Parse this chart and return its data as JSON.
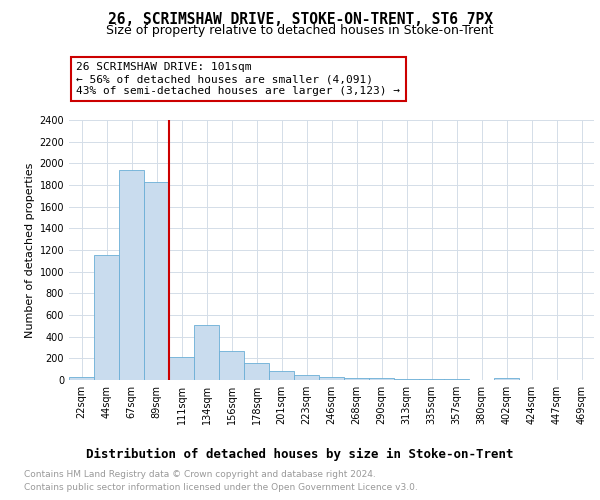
{
  "title": "26, SCRIMSHAW DRIVE, STOKE-ON-TRENT, ST6 7PX",
  "subtitle": "Size of property relative to detached houses in Stoke-on-Trent",
  "xlabel": "Distribution of detached houses by size in Stoke-on-Trent",
  "ylabel": "Number of detached properties",
  "categories": [
    "22sqm",
    "44sqm",
    "67sqm",
    "89sqm",
    "111sqm",
    "134sqm",
    "156sqm",
    "178sqm",
    "201sqm",
    "223sqm",
    "246sqm",
    "268sqm",
    "290sqm",
    "313sqm",
    "335sqm",
    "357sqm",
    "380sqm",
    "402sqm",
    "424sqm",
    "447sqm",
    "469sqm"
  ],
  "values": [
    25,
    1150,
    1940,
    1830,
    210,
    510,
    270,
    155,
    80,
    45,
    30,
    20,
    15,
    10,
    5,
    5,
    3,
    15,
    3,
    3,
    3
  ],
  "bar_color": "#c9dcee",
  "bar_edge_color": "#6aaed6",
  "vline_x_index": 3,
  "vline_color": "#cc0000",
  "annotation_text": "26 SCRIMSHAW DRIVE: 101sqm\n← 56% of detached houses are smaller (4,091)\n43% of semi-detached houses are larger (3,123) →",
  "annotation_box_color": "#cc0000",
  "ylim": [
    0,
    2400
  ],
  "yticks": [
    0,
    200,
    400,
    600,
    800,
    1000,
    1200,
    1400,
    1600,
    1800,
    2000,
    2200,
    2400
  ],
  "grid_color": "#d4dde8",
  "footer_line1": "Contains HM Land Registry data © Crown copyright and database right 2024.",
  "footer_line2": "Contains public sector information licensed under the Open Government Licence v3.0.",
  "title_fontsize": 10.5,
  "subtitle_fontsize": 9,
  "xlabel_fontsize": 9,
  "ylabel_fontsize": 8,
  "tick_fontsize": 7,
  "annotation_fontsize": 8,
  "footer_fontsize": 6.5
}
